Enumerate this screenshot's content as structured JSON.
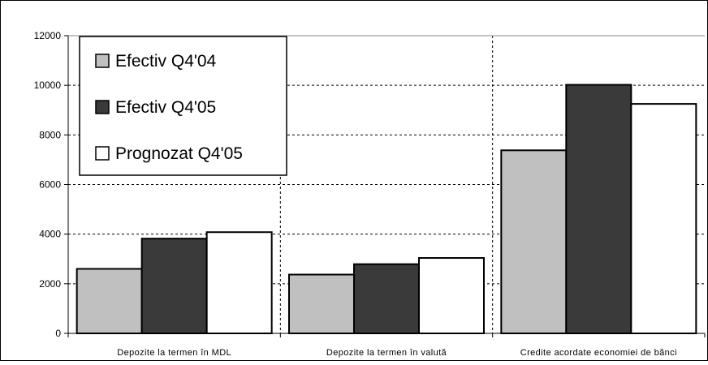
{
  "chart_data": {
    "type": "bar",
    "title": "",
    "xlabel": "",
    "ylabel": "",
    "categories": [
      "Depozite la termen în MDL",
      "Depozite la termen în valută",
      "Credite acordate economiei de bănci"
    ],
    "series": [
      {
        "name": "Efectiv Q4'04",
        "values": [
          2600,
          2370,
          7380
        ],
        "color": "#c0c0c0"
      },
      {
        "name": "Efectiv Q4'05",
        "values": [
          3820,
          2790,
          10020
        ],
        "color": "#3a3a3a"
      },
      {
        "name": "Prognozat Q4'05",
        "values": [
          4080,
          3040,
          9250
        ],
        "color": "#ffffff"
      }
    ],
    "ylim": [
      0,
      12000
    ],
    "yticks": [
      "0",
      "2000",
      "4000",
      "6000",
      "8000",
      "10000",
      "12000"
    ],
    "grid": true,
    "grid_style": "dashed",
    "legend_position": "top-left"
  }
}
